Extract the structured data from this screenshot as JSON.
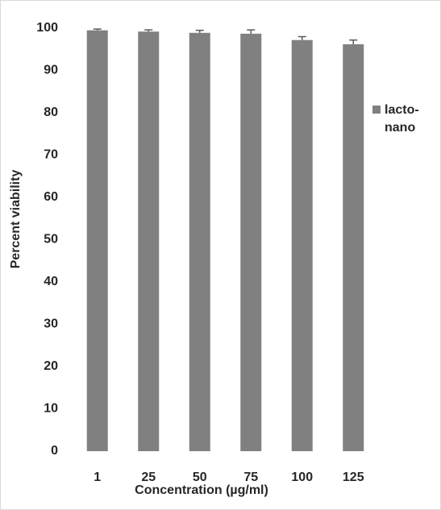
{
  "chart_data": {
    "type": "bar",
    "x_label": "Concentration (µg/ml)",
    "y_label": "Percent viability",
    "categories": [
      "1",
      "25",
      "50",
      "75",
      "100",
      "125"
    ],
    "series": [
      {
        "name": "lacto-nano",
        "color": "#808080",
        "values": [
          99.5,
          99.2,
          98.9,
          98.7,
          97.2,
          96.2
        ],
        "errors": [
          0.3,
          0.4,
          0.6,
          0.9,
          0.8,
          1.0
        ]
      }
    ],
    "error_color": "#595959",
    "ylim": [
      0,
      100
    ],
    "yticks": [
      0,
      10,
      20,
      30,
      40,
      50,
      60,
      70,
      80,
      90,
      100
    ],
    "grid": false,
    "legend": "right"
  }
}
